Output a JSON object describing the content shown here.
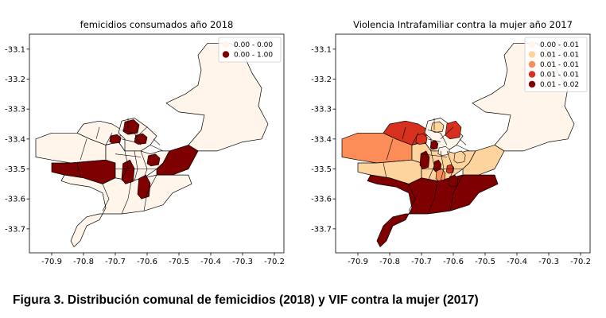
{
  "chart_data": [
    {
      "type": "choropleth",
      "title": "femicidios consumados año 2018",
      "xlim": [
        -70.97,
        -70.17
      ],
      "ylim": [
        -33.78,
        -33.05
      ],
      "x_ticks": [
        "-70.9",
        "-70.8",
        "-70.7",
        "-70.6",
        "-70.5",
        "-70.4",
        "-70.3",
        "-70.2"
      ],
      "y_ticks": [
        "-33.1",
        "-33.2",
        "-33.3",
        "-33.4",
        "-33.5",
        "-33.6",
        "-33.7"
      ],
      "legend": {
        "position": "top-right",
        "classes": [
          {
            "label": "0.00 - 0.00",
            "color": "#fff5eb"
          },
          {
            "label": "0.00 - 1.00",
            "color": "#7f0000"
          }
        ]
      }
    },
    {
      "type": "choropleth",
      "title": "Violencia Intrafamiliar contra la mujer año 2017",
      "xlim": [
        -70.97,
        -70.17
      ],
      "ylim": [
        -33.78,
        -33.05
      ],
      "x_ticks": [
        "-70.9",
        "-70.8",
        "-70.7",
        "-70.6",
        "-70.5",
        "-70.4",
        "-70.3",
        "-70.2"
      ],
      "y_ticks": [
        "-33.1",
        "-33.2",
        "-33.3",
        "-33.4",
        "-33.5",
        "-33.6",
        "-33.7"
      ],
      "legend": {
        "position": "top-right",
        "classes": [
          {
            "label": "0.00 - 0.01",
            "color": "#fff5eb"
          },
          {
            "label": "0.01 - 0.01",
            "color": "#fdd49e"
          },
          {
            "label": "0.01 - 0.01",
            "color": "#fc8d59"
          },
          {
            "label": "0.01 - 0.01",
            "color": "#d7301f"
          },
          {
            "label": "0.01 - 0.02",
            "color": "#7f0000"
          }
        ]
      }
    }
  ],
  "caption": "Figura 3. Distribución comunal de femicidios (2018) y VIF contra la mujer (2017)"
}
